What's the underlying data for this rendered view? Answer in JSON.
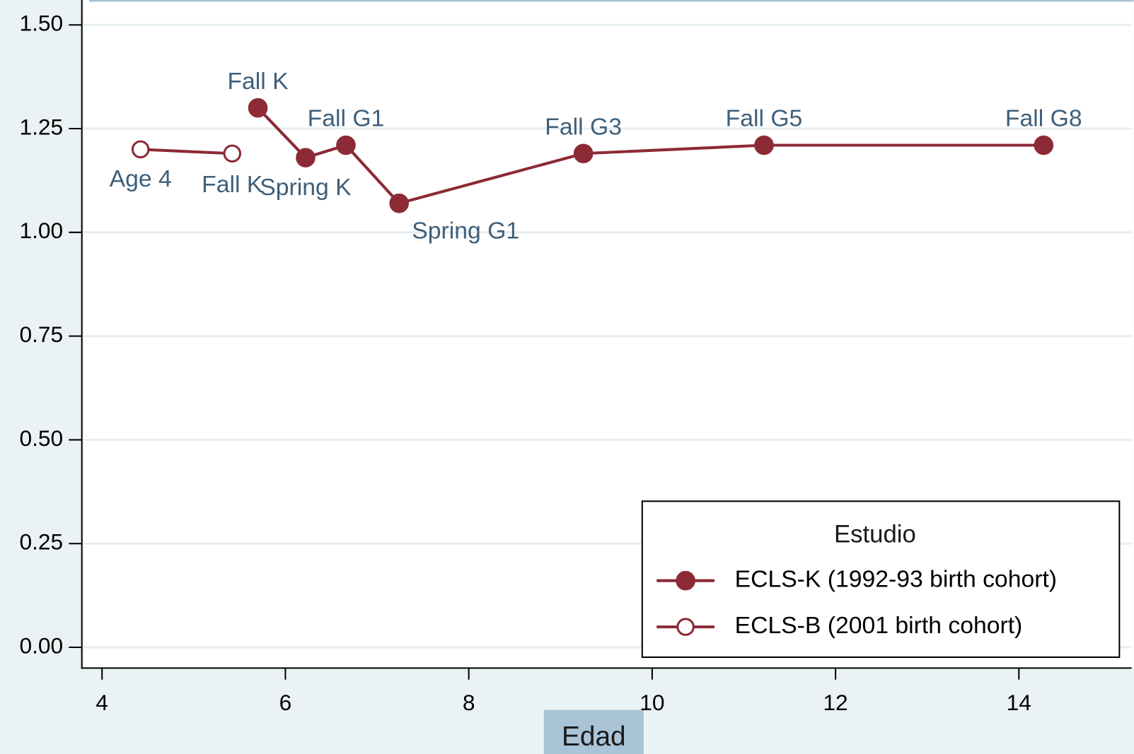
{
  "chart_data": {
    "type": "line",
    "x_label": "Edad",
    "legend_title": "Estudio",
    "legend_position": "lower right",
    "grid": true,
    "xlim": [
      3.78,
      15.23
    ],
    "xticks": [
      4,
      6,
      8,
      10,
      12,
      14
    ],
    "ylim": [
      -0.05,
      1.56
    ],
    "yticks": [
      {
        "value": 0,
        "label": "0.00"
      },
      {
        "value": 0.25,
        "label": "0.25"
      },
      {
        "value": 0.5,
        "label": "0.50"
      },
      {
        "value": 0.75,
        "label": "0.75"
      },
      {
        "value": 1,
        "label": "1.00"
      },
      {
        "value": 1.25,
        "label": "1.25"
      },
      {
        "value": 1.5,
        "label": "1.50"
      }
    ],
    "series": [
      {
        "name": "ECLS-K (1992-93 birth cohort)",
        "color": "#8c2a35",
        "marker": "filled",
        "x": [
          5.7,
          6.22,
          6.66,
          7.24,
          9.25,
          11.22,
          14.27
        ],
        "values": [
          1.3,
          1.18,
          1.21,
          1.07,
          1.19,
          1.21,
          1.21
        ],
        "labels": [
          "Fall K",
          "Spring K",
          "Fall G1",
          "Spring G1",
          "Fall G3",
          "Fall G5",
          "Fall G8"
        ]
      },
      {
        "name": "ECLS-B (2001 birth cohort)",
        "color": "#8c2a35",
        "marker": "hollow",
        "x": [
          4.42,
          5.42
        ],
        "values": [
          1.2,
          1.19
        ],
        "labels": [
          "Age 4",
          "Fall K"
        ]
      }
    ]
  }
}
